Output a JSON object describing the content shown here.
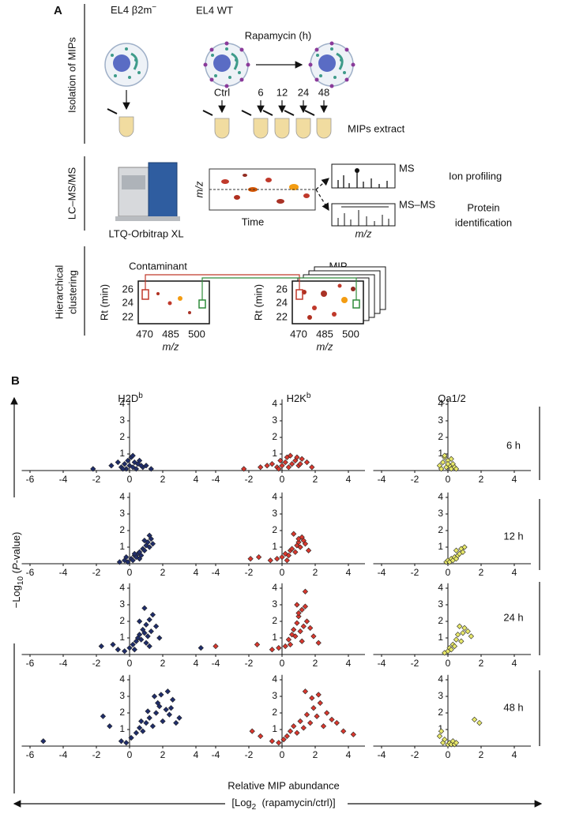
{
  "panel_a": {
    "label": "A",
    "row_labels": {
      "isolation": "Isolation of MIPs",
      "lcms": "LC–MS/MS",
      "clustering": [
        "Hierarchical",
        "clustering"
      ]
    },
    "el4_b2m": {
      "text": "EL4 β2m",
      "sup": "−"
    },
    "el4_wt": "EL4 WT",
    "rapamycin": "Rapamycin (h)",
    "timepoints": [
      "Ctrl",
      "6",
      "12",
      "24",
      "48"
    ],
    "mips_extract": "MIPs extract",
    "instrument": "LTQ-Orbitrap XL",
    "lc_axes": {
      "y": "m/z",
      "x": "Time"
    },
    "ms": "MS",
    "ion_profiling": "Ion profiling",
    "msms": "MS–MS",
    "protein_identification": [
      "Protein",
      "identification"
    ],
    "spectrum_x": "m/z",
    "contaminant": {
      "title": "Contaminant",
      "y_label": "Rt (min)",
      "yticks": [
        "26",
        "24",
        "22"
      ],
      "xticks": [
        "470",
        "485",
        "500"
      ],
      "x_label": "m/z"
    },
    "mip": {
      "title": "MIP",
      "y_label": "Rt (min)",
      "yticks": [
        "26",
        "24",
        "22"
      ],
      "xticks": [
        "470",
        "485",
        "500"
      ],
      "x_label": "m/z"
    }
  },
  "panel_b": {
    "label": "B",
    "columns": [
      {
        "text": "H2D",
        "sup": "b"
      },
      {
        "text": "H2K",
        "sup": "b"
      },
      {
        "text": "Qa1/2",
        "sup": ""
      }
    ],
    "rows": [
      "6 h",
      "12 h",
      "24 h",
      "48 h"
    ],
    "y_label": [
      "−Log",
      "10",
      " (",
      "P",
      "-value)"
    ],
    "x_label": [
      "Relative MIP abundance",
      "[Log",
      "2",
      "  (rapamycin/ctrl)]"
    ]
  },
  "chart_data": [
    {
      "type": "scatter",
      "color": "#1f2d6b",
      "xlim": [
        -6.5,
        5
      ],
      "xticks": [
        -6,
        -4,
        -2,
        0,
        2,
        4
      ],
      "ylim": [
        0,
        4.3
      ],
      "yticks": [
        1,
        2,
        3,
        4
      ],
      "x": [
        -2.2,
        -1.1,
        -0.7,
        -0.5,
        -0.3,
        -0.2,
        -0.1,
        0.0,
        0.1,
        0.2,
        0.3,
        0.4,
        0.5,
        0.6,
        0.8,
        1.0,
        1.3,
        -0.4,
        0.2,
        0.7
      ],
      "y": [
        0.1,
        0.3,
        0.5,
        0.2,
        0.4,
        0.1,
        0.6,
        0.3,
        0.8,
        0.2,
        0.5,
        0.1,
        0.4,
        0.6,
        0.2,
        0.3,
        0.1,
        0.1,
        0.9,
        0.3
      ]
    },
    {
      "type": "scatter",
      "color": "#d9382e",
      "xlim": [
        -4.5,
        5
      ],
      "xticks": [
        -4,
        -2,
        0,
        2,
        4
      ],
      "ylim": [
        0,
        4.3
      ],
      "yticks": [
        1,
        2,
        3,
        4
      ],
      "x": [
        -2.3,
        -1.3,
        -0.9,
        -0.6,
        -0.3,
        -0.1,
        0.0,
        0.2,
        0.3,
        0.4,
        0.6,
        0.8,
        1.0,
        1.2,
        1.5,
        1.8,
        -0.2,
        0.5,
        0.9,
        1.1
      ],
      "y": [
        0.1,
        0.2,
        0.3,
        0.4,
        0.2,
        0.6,
        0.3,
        0.5,
        0.8,
        0.2,
        0.4,
        0.6,
        0.3,
        0.7,
        0.5,
        0.2,
        0.1,
        0.9,
        0.8,
        0.4
      ]
    },
    {
      "type": "scatter",
      "color": "#e8e86a",
      "xlim": [
        -4.5,
        5
      ],
      "xticks": [
        -4,
        -2,
        0,
        2,
        4
      ],
      "ylim": [
        0,
        4.3
      ],
      "yticks": [
        1,
        2,
        3,
        4
      ],
      "x": [
        -0.5,
        -0.4,
        -0.3,
        -0.2,
        -0.1,
        0.0,
        0.1,
        0.2,
        0.3,
        0.4,
        0.5,
        -0.2,
        0.0,
        0.2
      ],
      "y": [
        0.3,
        0.1,
        0.5,
        0.8,
        0.2,
        0.6,
        0.3,
        0.1,
        0.4,
        0.2,
        0.1,
        0.9,
        0.4,
        0.7
      ]
    },
    {
      "type": "scatter",
      "color": "#1f2d6b",
      "xlim": [
        -6.5,
        5
      ],
      "xticks": [
        -6,
        -4,
        -2,
        0,
        2,
        4
      ],
      "ylim": [
        0,
        4.3
      ],
      "yticks": [
        1,
        2,
        3,
        4
      ],
      "x": [
        -0.6,
        -0.3,
        -0.1,
        0.1,
        0.2,
        0.3,
        0.4,
        0.5,
        0.6,
        0.7,
        0.8,
        0.9,
        1.0,
        1.1,
        1.2,
        1.3,
        1.4,
        0.6,
        0.9,
        1.2,
        0.3,
        -0.2
      ],
      "y": [
        0.1,
        0.2,
        0.1,
        0.3,
        0.2,
        0.5,
        0.4,
        0.6,
        0.7,
        0.5,
        0.9,
        0.8,
        1.1,
        1.3,
        1.0,
        1.5,
        1.2,
        0.3,
        1.4,
        1.7,
        0.6,
        0.4
      ]
    },
    {
      "type": "scatter",
      "color": "#d9382e",
      "xlim": [
        -4.5,
        5
      ],
      "xticks": [
        -4,
        -2,
        0,
        2,
        4
      ],
      "ylim": [
        0,
        4.3
      ],
      "yticks": [
        1,
        2,
        3,
        4
      ],
      "x": [
        -1.9,
        -1.4,
        -0.7,
        -0.3,
        0.0,
        0.2,
        0.4,
        0.5,
        0.6,
        0.8,
        0.9,
        1.0,
        1.1,
        1.2,
        1.4,
        1.6,
        0.7,
        1.0,
        1.3,
        0.3
      ],
      "y": [
        0.3,
        0.4,
        0.2,
        0.3,
        0.4,
        0.6,
        0.5,
        0.8,
        0.9,
        0.7,
        1.1,
        1.3,
        1.0,
        1.6,
        1.2,
        0.8,
        1.8,
        1.5,
        1.4,
        0.2
      ]
    },
    {
      "type": "scatter",
      "color": "#e8e86a",
      "xlim": [
        -4.5,
        5
      ],
      "xticks": [
        -4,
        -2,
        0,
        2,
        4
      ],
      "ylim": [
        0,
        4.3
      ],
      "yticks": [
        1,
        2,
        3,
        4
      ],
      "x": [
        -0.1,
        0.0,
        0.1,
        0.2,
        0.3,
        0.4,
        0.5,
        0.6,
        0.7,
        0.8,
        1.0,
        0.9,
        0.5
      ],
      "y": [
        0.1,
        0.2,
        0.1,
        0.3,
        0.2,
        0.4,
        0.3,
        0.5,
        0.6,
        0.9,
        1.0,
        0.7,
        0.8
      ]
    },
    {
      "type": "scatter",
      "color": "#1f2d6b",
      "xlim": [
        -6.5,
        5
      ],
      "xticks": [
        -6,
        -4,
        -2,
        0,
        2,
        4
      ],
      "ylim": [
        0,
        4.3
      ],
      "yticks": [
        1,
        2,
        3,
        4
      ],
      "x": [
        -1.7,
        -0.7,
        -0.3,
        0.0,
        0.2,
        0.4,
        0.5,
        0.6,
        0.7,
        0.8,
        0.9,
        1.0,
        1.1,
        1.2,
        1.3,
        1.4,
        1.6,
        1.8,
        0.9,
        0.6,
        1.0,
        1.2,
        4.3,
        -1.0,
        0.3
      ],
      "y": [
        0.5,
        0.3,
        0.2,
        0.4,
        0.6,
        0.8,
        1.0,
        1.2,
        0.9,
        1.5,
        1.3,
        1.8,
        1.1,
        2.1,
        1.4,
        2.4,
        1.7,
        1.0,
        2.8,
        2.0,
        0.7,
        0.5,
        0.4,
        0.6,
        0.3
      ]
    },
    {
      "type": "scatter",
      "color": "#d9382e",
      "xlim": [
        -4.5,
        5
      ],
      "xticks": [
        -4,
        -2,
        0,
        2,
        4
      ],
      "ylim": [
        0,
        4.3
      ],
      "yticks": [
        1,
        2,
        3,
        4
      ],
      "x": [
        -4.0,
        -1.5,
        -0.6,
        -0.2,
        0.2,
        0.4,
        0.6,
        0.7,
        0.8,
        0.9,
        1.0,
        1.1,
        1.2,
        1.3,
        1.4,
        1.5,
        1.7,
        1.9,
        2.2,
        0.9,
        1.0,
        1.2,
        0.5,
        1.4
      ],
      "y": [
        0.5,
        0.6,
        0.3,
        0.4,
        0.5,
        0.9,
        1.2,
        1.5,
        1.1,
        1.9,
        2.3,
        1.4,
        2.7,
        1.7,
        3.8,
        2.0,
        1.6,
        1.1,
        0.7,
        3.0,
        2.5,
        0.8,
        0.6,
        2.9
      ]
    },
    {
      "type": "scatter",
      "color": "#e8e86a",
      "xlim": [
        -4.5,
        5
      ],
      "xticks": [
        -4,
        -2,
        0,
        2,
        4
      ],
      "ylim": [
        0,
        4.3
      ],
      "yticks": [
        1,
        2,
        3,
        4
      ],
      "x": [
        -0.2,
        0.0,
        0.1,
        0.2,
        0.3,
        0.4,
        0.5,
        0.6,
        0.8,
        0.9,
        1.0,
        1.2,
        1.4,
        0.7
      ],
      "y": [
        0.1,
        0.2,
        0.4,
        0.3,
        0.6,
        0.5,
        0.9,
        1.2,
        0.8,
        1.3,
        1.6,
        1.4,
        1.1,
        1.7
      ]
    },
    {
      "type": "scatter",
      "color": "#1f2d6b",
      "xlim": [
        -6.5,
        5
      ],
      "xticks": [
        -6,
        -4,
        -2,
        0,
        2,
        4
      ],
      "ylim": [
        0,
        4.3
      ],
      "yticks": [
        1,
        2,
        3,
        4
      ],
      "x": [
        -5.2,
        -1.6,
        -1.2,
        -0.5,
        -0.2,
        0.1,
        0.4,
        0.6,
        0.8,
        1.0,
        1.2,
        1.4,
        1.6,
        1.8,
        2.0,
        2.2,
        2.4,
        2.6,
        2.8,
        3.0,
        1.5,
        1.9,
        2.5,
        1.1,
        0.7,
        2.3,
        1.7
      ],
      "y": [
        0.3,
        1.8,
        1.2,
        0.3,
        0.2,
        0.5,
        0.8,
        1.1,
        0.9,
        1.4,
        1.7,
        1.2,
        2.0,
        2.4,
        1.5,
        2.2,
        1.9,
        2.8,
        1.4,
        1.7,
        3.0,
        3.1,
        2.3,
        2.1,
        1.5,
        3.3,
        2.6
      ]
    },
    {
      "type": "scatter",
      "color": "#d9382e",
      "xlim": [
        -4.5,
        5
      ],
      "xticks": [
        -4,
        -2,
        0,
        2,
        4
      ],
      "ylim": [
        0,
        4.3
      ],
      "yticks": [
        1,
        2,
        3,
        4
      ],
      "x": [
        -1.8,
        -1.3,
        -0.6,
        -0.2,
        0.1,
        0.3,
        0.5,
        0.7,
        0.9,
        1.1,
        1.3,
        1.5,
        1.7,
        1.9,
        2.1,
        2.3,
        2.5,
        2.7,
        3.0,
        3.3,
        3.7,
        4.3,
        1.4,
        1.8,
        2.2
      ],
      "y": [
        0.9,
        0.6,
        0.3,
        0.2,
        0.4,
        0.6,
        0.9,
        1.2,
        0.8,
        1.5,
        1.1,
        1.9,
        1.4,
        2.3,
        1.8,
        2.6,
        1.2,
        2.0,
        1.6,
        1.4,
        0.9,
        0.7,
        3.3,
        2.9,
        3.1
      ]
    },
    {
      "type": "scatter",
      "color": "#e8e86a",
      "xlim": [
        -4.5,
        5
      ],
      "xticks": [
        -4,
        -2,
        0,
        2,
        4
      ],
      "ylim": [
        0,
        4.3
      ],
      "yticks": [
        1,
        2,
        3,
        4
      ],
      "x": [
        -0.5,
        -0.3,
        -0.2,
        0.0,
        0.1,
        0.2,
        0.3,
        0.4,
        0.5,
        -0.4,
        1.6,
        1.9
      ],
      "y": [
        0.6,
        0.2,
        0.4,
        0.1,
        0.2,
        0.1,
        0.3,
        0.1,
        0.2,
        0.9,
        1.6,
        1.4
      ]
    }
  ]
}
